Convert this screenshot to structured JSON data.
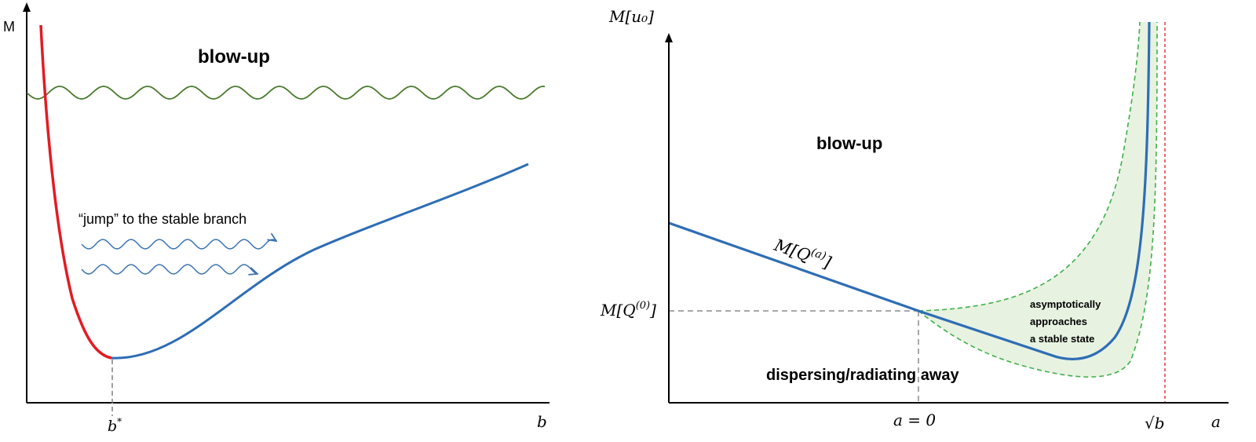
{
  "left_panel": {
    "y_axis_label": "M",
    "x_axis_label": "b",
    "x_tick_label": "b*",
    "region_label": "blow-up",
    "annotation": "“jump” to the stable branch"
  },
  "right_panel": {
    "y_axis_label": "M[u₀]",
    "x_axis_label": "a",
    "y_tick_label": "M[Q(0)]",
    "x_tick_zero": "a = 0",
    "x_tick_sqrt": "√b",
    "curve_label": "M[Q(a)]",
    "region_label_top": "blow-up",
    "region_label_bottom": "dispersing/radiating away",
    "annotation_lines": [
      "asymptotically",
      "approaches",
      "a stable state"
    ]
  },
  "colors": {
    "unstable_branch": "#e31b23",
    "stable_branch": "#2e6db4",
    "threshold_wave": "#4a7a2e",
    "jump_arrows": "#3b73b0",
    "band_fill": "#e7f2e1",
    "band_edge": "#3fb04a",
    "asymptote": "#e31b23"
  }
}
